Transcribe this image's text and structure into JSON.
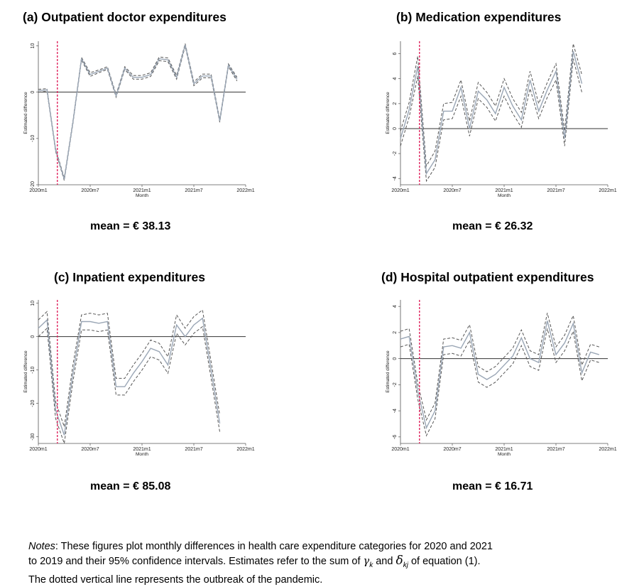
{
  "chart_data": [
    {
      "type": "line",
      "panel_title": "(a)  Outpatient doctor expenditures",
      "mean_label": "mean = € 38.13",
      "xlabel": "Month",
      "ylabel": "Estimated difference",
      "x_ticks": [
        "2020m1",
        "2020m7",
        "2021m1",
        "2021m7",
        "2022m1"
      ],
      "x_tick_idx": [
        0,
        6,
        12,
        18,
        24
      ],
      "y_ticks": [
        10,
        0,
        -10,
        -20
      ],
      "ylim": [
        -20,
        11
      ],
      "outbreak_idx": 2.2,
      "series": [
        {
          "name": "estimate",
          "values": [
            0.3,
            0.5,
            -12.5,
            -18.8,
            -6.5,
            7.2,
            3.8,
            4.5,
            5.2,
            -0.8,
            5.2,
            3.2,
            3.2,
            3.8,
            7.2,
            7.0,
            3.2,
            10.2,
            1.8,
            3.5,
            3.5,
            -6.2,
            5.8,
            2.8
          ]
        },
        {
          "name": "ci_upper",
          "values": [
            0.6,
            0.8,
            -12.2,
            -18.5,
            -6.2,
            7.5,
            4.2,
            4.8,
            5.5,
            -0.5,
            5.5,
            3.6,
            3.6,
            4.2,
            7.6,
            7.4,
            3.6,
            10.5,
            2.2,
            3.9,
            3.9,
            -5.9,
            6.1,
            3.2
          ]
        },
        {
          "name": "ci_lower",
          "values": [
            0.0,
            0.2,
            -12.8,
            -19.1,
            -6.8,
            6.9,
            3.4,
            4.2,
            4.9,
            -1.1,
            4.9,
            2.8,
            2.8,
            3.4,
            6.8,
            6.6,
            2.8,
            9.9,
            1.4,
            3.1,
            3.1,
            -6.5,
            5.5,
            2.4
          ]
        }
      ]
    },
    {
      "type": "line",
      "panel_title": "(b)  Medication  expenditures",
      "mean_label": "mean = € 26.32",
      "xlabel": "Month",
      "ylabel": "Estimated difference",
      "x_ticks": [
        "2020m1",
        "2020m7",
        "2021m1",
        "2021m7",
        "2022m1"
      ],
      "x_tick_idx": [
        0,
        6,
        12,
        18,
        24
      ],
      "y_ticks": [
        6,
        4,
        2,
        0,
        -2,
        -4
      ],
      "ylim": [
        -4.5,
        7
      ],
      "outbreak_idx": 2.2,
      "series": [
        {
          "name": "estimate",
          "values": [
            -0.8,
            1.5,
            5.0,
            -3.6,
            -2.5,
            1.4,
            1.4,
            3.3,
            0.0,
            3.0,
            2.3,
            1.2,
            3.3,
            1.8,
            0.7,
            3.9,
            1.4,
            3.1,
            4.6,
            -0.8,
            6.2,
            3.6
          ]
        },
        {
          "name": "ci_upper",
          "values": [
            -0.2,
            2.1,
            5.8,
            -3.0,
            -1.8,
            2.0,
            2.1,
            3.9,
            0.6,
            3.7,
            2.9,
            1.8,
            4.0,
            2.4,
            1.3,
            4.6,
            2.0,
            3.7,
            5.2,
            -0.2,
            6.8,
            4.3
          ]
        },
        {
          "name": "ci_lower",
          "values": [
            -1.4,
            0.9,
            4.2,
            -4.2,
            -3.1,
            0.7,
            0.8,
            2.6,
            -0.6,
            2.4,
            1.7,
            0.6,
            2.6,
            1.2,
            0.1,
            3.2,
            0.8,
            2.5,
            3.9,
            -1.4,
            5.6,
            2.9
          ]
        }
      ]
    },
    {
      "type": "line",
      "panel_title": "(c)  Inpatient  expenditures",
      "mean_label": "mean = € 85.08",
      "xlabel": "Month",
      "ylabel": "Estimated difference",
      "x_ticks": [
        "2020m1",
        "2020m7",
        "2021m1",
        "2021m7",
        "2022m1"
      ],
      "x_tick_idx": [
        0,
        6,
        12,
        18,
        24
      ],
      "y_ticks": [
        10,
        0,
        -10,
        -20,
        -30
      ],
      "ylim": [
        -32,
        11
      ],
      "outbreak_idx": 2.2,
      "series": [
        {
          "name": "estimate",
          "values": [
            2.5,
            5.0,
            -22.0,
            -29.5,
            -11.0,
            4.5,
            4.5,
            4.0,
            4.5,
            -15.0,
            -15.0,
            -11.0,
            -7.5,
            -3.5,
            -4.5,
            -8.5,
            3.5,
            0.0,
            3.5,
            5.5,
            -10.0,
            -26.0
          ]
        },
        {
          "name": "ci_upper",
          "values": [
            5.0,
            7.5,
            -19.5,
            -27.0,
            -8.5,
            6.5,
            7.0,
            6.5,
            7.0,
            -12.5,
            -12.5,
            -8.5,
            -5.0,
            -1.0,
            -2.0,
            -6.0,
            6.5,
            2.5,
            6.0,
            8.0,
            -7.5,
            -23.5
          ]
        },
        {
          "name": "ci_lower",
          "values": [
            0.0,
            2.5,
            -24.5,
            -32.0,
            -13.5,
            2.0,
            2.0,
            1.5,
            2.0,
            -17.5,
            -17.5,
            -13.5,
            -10.0,
            -6.0,
            -7.0,
            -11.0,
            1.0,
            -2.5,
            1.0,
            3.0,
            -12.5,
            -28.5
          ]
        }
      ]
    },
    {
      "type": "line",
      "panel_title": "(d)  Hospital outpatient expenditures",
      "mean_label": "mean = € 16.71",
      "xlabel": "Month",
      "ylabel": "Estimated difference",
      "x_ticks": [
        "2020m1",
        "2020m7",
        "2021m1",
        "2021m7",
        "2022m1"
      ],
      "x_tick_idx": [
        0,
        6,
        12,
        18,
        24
      ],
      "y_ticks": [
        4,
        2,
        0,
        -2,
        -4,
        -6
      ],
      "ylim": [
        -6.5,
        4.5
      ],
      "outbreak_idx": 2.2,
      "series": [
        {
          "name": "estimate",
          "values": [
            1.5,
            1.7,
            -2.5,
            -5.3,
            -4.0,
            0.9,
            1.0,
            0.8,
            2.0,
            -1.2,
            -1.6,
            -1.2,
            -0.5,
            0.2,
            1.6,
            0.0,
            -0.3,
            2.9,
            0.3,
            1.2,
            2.7,
            -1.1,
            0.5,
            0.3
          ]
        },
        {
          "name": "ci_upper",
          "values": [
            2.1,
            2.3,
            -1.9,
            -4.7,
            -3.4,
            1.5,
            1.6,
            1.4,
            2.6,
            -0.6,
            -1.0,
            -0.6,
            0.1,
            0.8,
            2.2,
            0.6,
            0.3,
            3.5,
            0.9,
            1.8,
            3.3,
            -0.5,
            1.1,
            0.9
          ]
        },
        {
          "name": "ci_lower",
          "values": [
            0.9,
            1.1,
            -3.1,
            -5.9,
            -4.6,
            0.3,
            0.4,
            0.2,
            1.4,
            -1.8,
            -2.2,
            -1.8,
            -1.1,
            -0.4,
            1.0,
            -0.6,
            -0.9,
            2.3,
            -0.3,
            0.6,
            2.1,
            -1.7,
            -0.1,
            -0.3
          ]
        }
      ]
    }
  ],
  "notes": {
    "label": "Notes",
    "line1": ": These figures plot monthly differences in health care expenditure categories for 2020 and 2021",
    "line2a": "to 2019 and their 95% confidence intervals.  Estimates refer to the sum of ",
    "gamma": "γ",
    "gamma_sub": "k",
    "and": " and ",
    "delta": "δ",
    "delta_sub": "kj",
    "line2b": " of equation (1).",
    "line3": "The dotted vertical line represents the outbreak of the pandemic."
  }
}
